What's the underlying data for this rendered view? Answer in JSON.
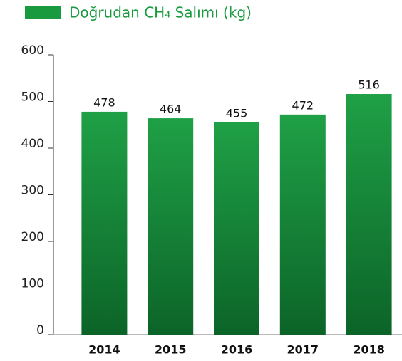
{
  "chart_data": {
    "type": "bar",
    "legend": "Doğrudan CH₄ Salımı (kg)",
    "categories": [
      "2014",
      "2015",
      "2016",
      "2017",
      "2018"
    ],
    "values": [
      478,
      464,
      455,
      472,
      516
    ],
    "color": "#1a9a3e",
    "ylim": [
      0,
      600
    ],
    "yticks": [
      0,
      100,
      200,
      300,
      400,
      500,
      600
    ],
    "grid": false
  }
}
